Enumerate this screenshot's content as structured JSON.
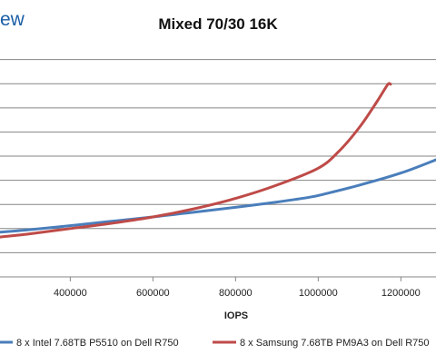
{
  "logo_text": "ew",
  "chart_data": {
    "type": "line",
    "title": "Mixed 70/30 16K",
    "xlabel": "IOPS",
    "ylabel": "",
    "xlim": [
      230000,
      1285000
    ],
    "ylim": [
      0,
      9.4
    ],
    "x_ticks": [
      400000,
      600000,
      800000,
      1000000,
      1200000
    ],
    "x_tick_labels": [
      "400000",
      "600000",
      "800000",
      "1000000",
      "1200000"
    ],
    "y_gridlines": [
      1,
      2,
      3,
      4,
      5,
      6,
      7,
      8,
      9
    ],
    "grid": "horizontal",
    "legend_position": "bottom",
    "series": [
      {
        "name": "8 x Intel 7.68TB P5510 on Dell R750",
        "color": "#4a7ebb",
        "x": [
          230000,
          300000,
          400000,
          500000,
          600000,
          700000,
          800000,
          900000,
          980000,
          1020000,
          1100000,
          1200000,
          1285000
        ],
        "y": [
          1.85,
          1.95,
          2.12,
          2.3,
          2.48,
          2.68,
          2.88,
          3.1,
          3.3,
          3.45,
          3.8,
          4.3,
          4.85
        ]
      },
      {
        "name": "8 x Samsung 7.68TB PM9A3 on Dell R750",
        "color": "#be4b48",
        "x": [
          230000,
          300000,
          400000,
          500000,
          600000,
          700000,
          800000,
          900000,
          1000000,
          1050000,
          1100000,
          1140000,
          1160000,
          1170000,
          1175000
        ],
        "y": [
          1.65,
          1.78,
          2.0,
          2.22,
          2.48,
          2.82,
          3.25,
          3.8,
          4.5,
          5.2,
          6.2,
          7.2,
          7.75,
          8.0,
          7.98
        ]
      }
    ]
  }
}
